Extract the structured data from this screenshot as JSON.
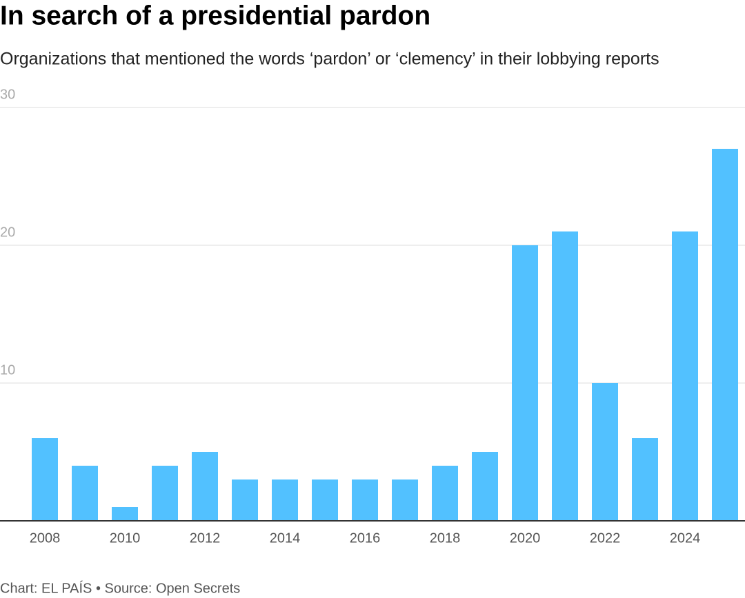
{
  "chart_data": {
    "type": "bar",
    "title": "In search of a presidential pardon",
    "subtitle": "Organizations that mentioned the words ‘pardon’ or ‘clemency’ in their lobbying reports",
    "categories": [
      "2008",
      null,
      "2010",
      null,
      "2012",
      null,
      "2014",
      null,
      "2016",
      null,
      "2018",
      null,
      "2020",
      null,
      "2022",
      null,
      "2024",
      null
    ],
    "values": [
      6,
      4,
      1,
      4,
      5,
      3,
      3,
      3,
      3,
      3,
      4,
      5,
      20,
      21,
      10,
      6,
      21,
      27
    ],
    "color": "#52c1ff",
    "ylim": [
      0,
      30
    ],
    "yticks": [
      10,
      20,
      30
    ],
    "grid": true,
    "footer": "Chart: EL PAÍS • Source: Open Secrets"
  }
}
